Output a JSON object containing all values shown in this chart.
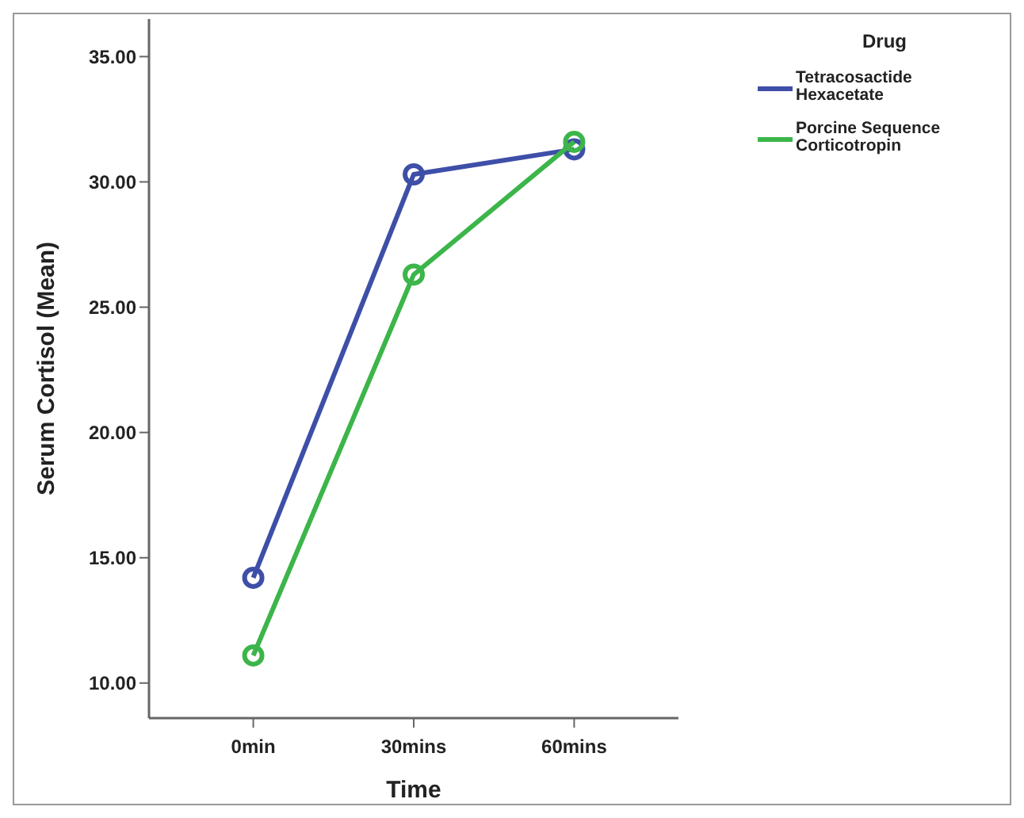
{
  "chart_data": {
    "type": "line",
    "xlabel": "Time",
    "ylabel": "Serum Cortisol (Mean)",
    "legend_title": "Drug",
    "categories": [
      "0min",
      "30mins",
      "60mins"
    ],
    "series": [
      {
        "name": "Tetracosactide Hexacetate",
        "color": "#3e4fa8",
        "values": [
          14.2,
          30.3,
          31.3
        ]
      },
      {
        "name": "Porcine Sequence Corticotropin",
        "color": "#3cb54a",
        "values": [
          11.1,
          26.3,
          31.6
        ]
      }
    ],
    "ylim": [
      8.6,
      36.5
    ],
    "yticks": [
      {
        "value": 10,
        "label": "10.00"
      },
      {
        "value": 15,
        "label": "15.00"
      },
      {
        "value": 20,
        "label": "20.00"
      },
      {
        "value": 25,
        "label": "25.00"
      },
      {
        "value": 30,
        "label": "30.00"
      },
      {
        "value": 35,
        "label": "35.00"
      }
    ],
    "grid": false,
    "legend": "top right",
    "marker": "circle",
    "line_style": "solid"
  }
}
